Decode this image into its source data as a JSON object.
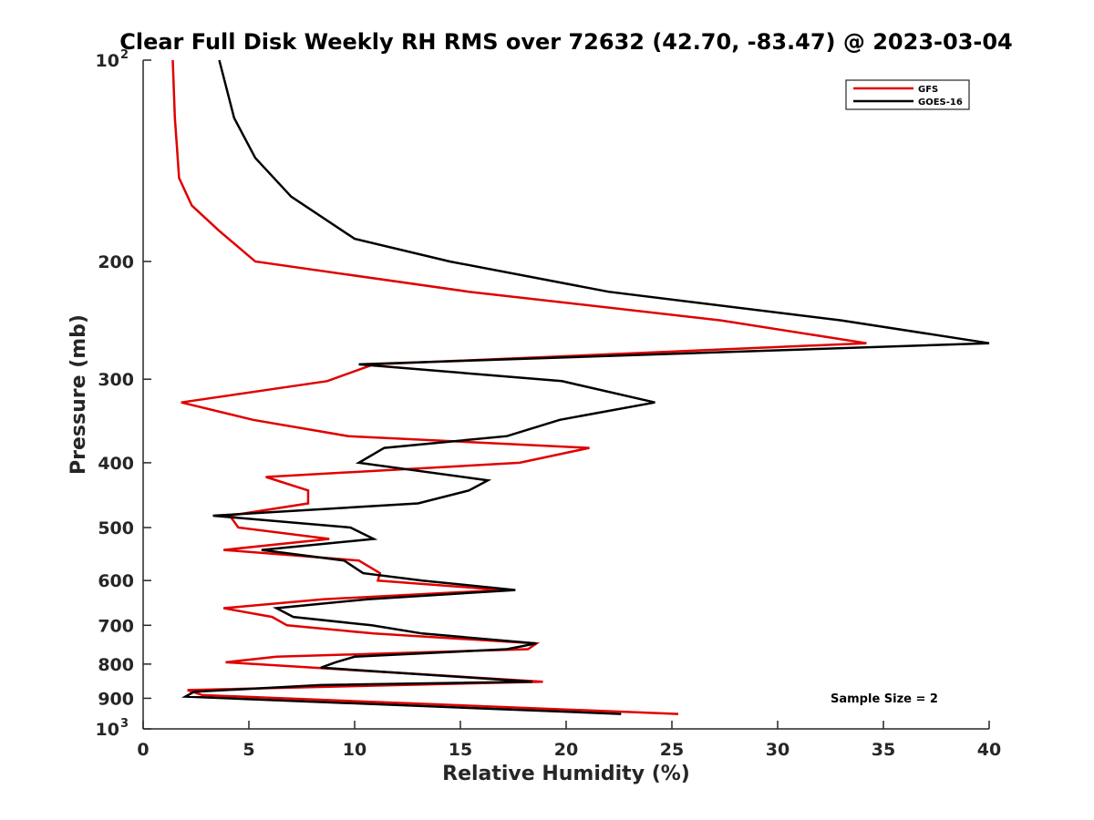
{
  "chart_data": {
    "type": "line",
    "title": "Clear Full Disk Weekly RH RMS over 72632 (42.70, -83.47) @ 2023-03-04",
    "xlabel": "Relative Humidity (%)",
    "ylabel": "Pressure (mb)",
    "xlim": [
      0,
      40
    ],
    "ylim": [
      100,
      1000
    ],
    "yscale": "log",
    "y_reversed": true,
    "x_ticks": [
      "0",
      "5",
      "10",
      "15",
      "20",
      "25",
      "30",
      "35",
      "40"
    ],
    "y_ticks": [
      {
        "value": 100,
        "base": "10",
        "exp": "2"
      },
      {
        "value": 200,
        "label": "200"
      },
      {
        "value": 300,
        "label": "300"
      },
      {
        "value": 400,
        "label": "400"
      },
      {
        "value": 500,
        "label": "500"
      },
      {
        "value": 600,
        "label": "600"
      },
      {
        "value": 700,
        "label": "700"
      },
      {
        "value": 800,
        "label": "800"
      },
      {
        "value": 900,
        "label": "900"
      },
      {
        "value": 1000,
        "base": "10",
        "exp": "3"
      }
    ],
    "grid": false,
    "legend_position": "top-right",
    "annotation": "Sample Size = 2",
    "series": [
      {
        "name": "GFS",
        "color": "#e00000",
        "points": [
          [
            1.4,
            100
          ],
          [
            1.5,
            122
          ],
          [
            1.6,
            135
          ],
          [
            1.7,
            150
          ],
          [
            2.3,
            165
          ],
          [
            3.6,
            180
          ],
          [
            5.3,
            200
          ],
          [
            15.4,
            222
          ],
          [
            27.3,
            245
          ],
          [
            34.2,
            265
          ],
          [
            10.9,
            285
          ],
          [
            8.7,
            302
          ],
          [
            1.8,
            325
          ],
          [
            5.2,
            345
          ],
          [
            9.7,
            365
          ],
          [
            21.1,
            380
          ],
          [
            17.8,
            400
          ],
          [
            5.8,
            420
          ],
          [
            7.8,
            440
          ],
          [
            7.8,
            460
          ],
          [
            4.1,
            480
          ],
          [
            4.5,
            500
          ],
          [
            8.8,
            520
          ],
          [
            3.8,
            540
          ],
          [
            10.2,
            560
          ],
          [
            11.2,
            585
          ],
          [
            11.1,
            600
          ],
          [
            17.0,
            620
          ],
          [
            8.5,
            640
          ],
          [
            3.8,
            660
          ],
          [
            6.1,
            680
          ],
          [
            6.8,
            700
          ],
          [
            10.9,
            720
          ],
          [
            18.6,
            745
          ],
          [
            18.2,
            760
          ],
          [
            6.3,
            780
          ],
          [
            3.9,
            795
          ],
          [
            18.9,
            850
          ],
          [
            2.1,
            875
          ],
          [
            2.8,
            890
          ],
          [
            25.3,
            950
          ]
        ]
      },
      {
        "name": "GOES-16",
        "color": "#000000",
        "points": [
          [
            3.6,
            100
          ],
          [
            4.3,
            122
          ],
          [
            5.3,
            140
          ],
          [
            7.0,
            160
          ],
          [
            10.0,
            185
          ],
          [
            14.5,
            200
          ],
          [
            22.0,
            222
          ],
          [
            33.0,
            245
          ],
          [
            40.0,
            265
          ],
          [
            10.2,
            285
          ],
          [
            19.8,
            302
          ],
          [
            24.2,
            325
          ],
          [
            19.7,
            345
          ],
          [
            17.2,
            365
          ],
          [
            11.4,
            380
          ],
          [
            10.2,
            400
          ],
          [
            16.3,
            425
          ],
          [
            15.4,
            440
          ],
          [
            13.0,
            460
          ],
          [
            3.3,
            480
          ],
          [
            9.8,
            500
          ],
          [
            10.9,
            520
          ],
          [
            5.6,
            540
          ],
          [
            9.5,
            560
          ],
          [
            10.4,
            585
          ],
          [
            13.2,
            600
          ],
          [
            17.6,
            620
          ],
          [
            10.6,
            640
          ],
          [
            6.3,
            660
          ],
          [
            7.1,
            680
          ],
          [
            10.8,
            700
          ],
          [
            13.2,
            720
          ],
          [
            18.6,
            745
          ],
          [
            17.2,
            760
          ],
          [
            10.0,
            780
          ],
          [
            9.1,
            795
          ],
          [
            8.4,
            810
          ],
          [
            18.4,
            850
          ],
          [
            8.4,
            860
          ],
          [
            2.4,
            880
          ],
          [
            2.0,
            895
          ],
          [
            22.6,
            950
          ]
        ]
      }
    ]
  }
}
